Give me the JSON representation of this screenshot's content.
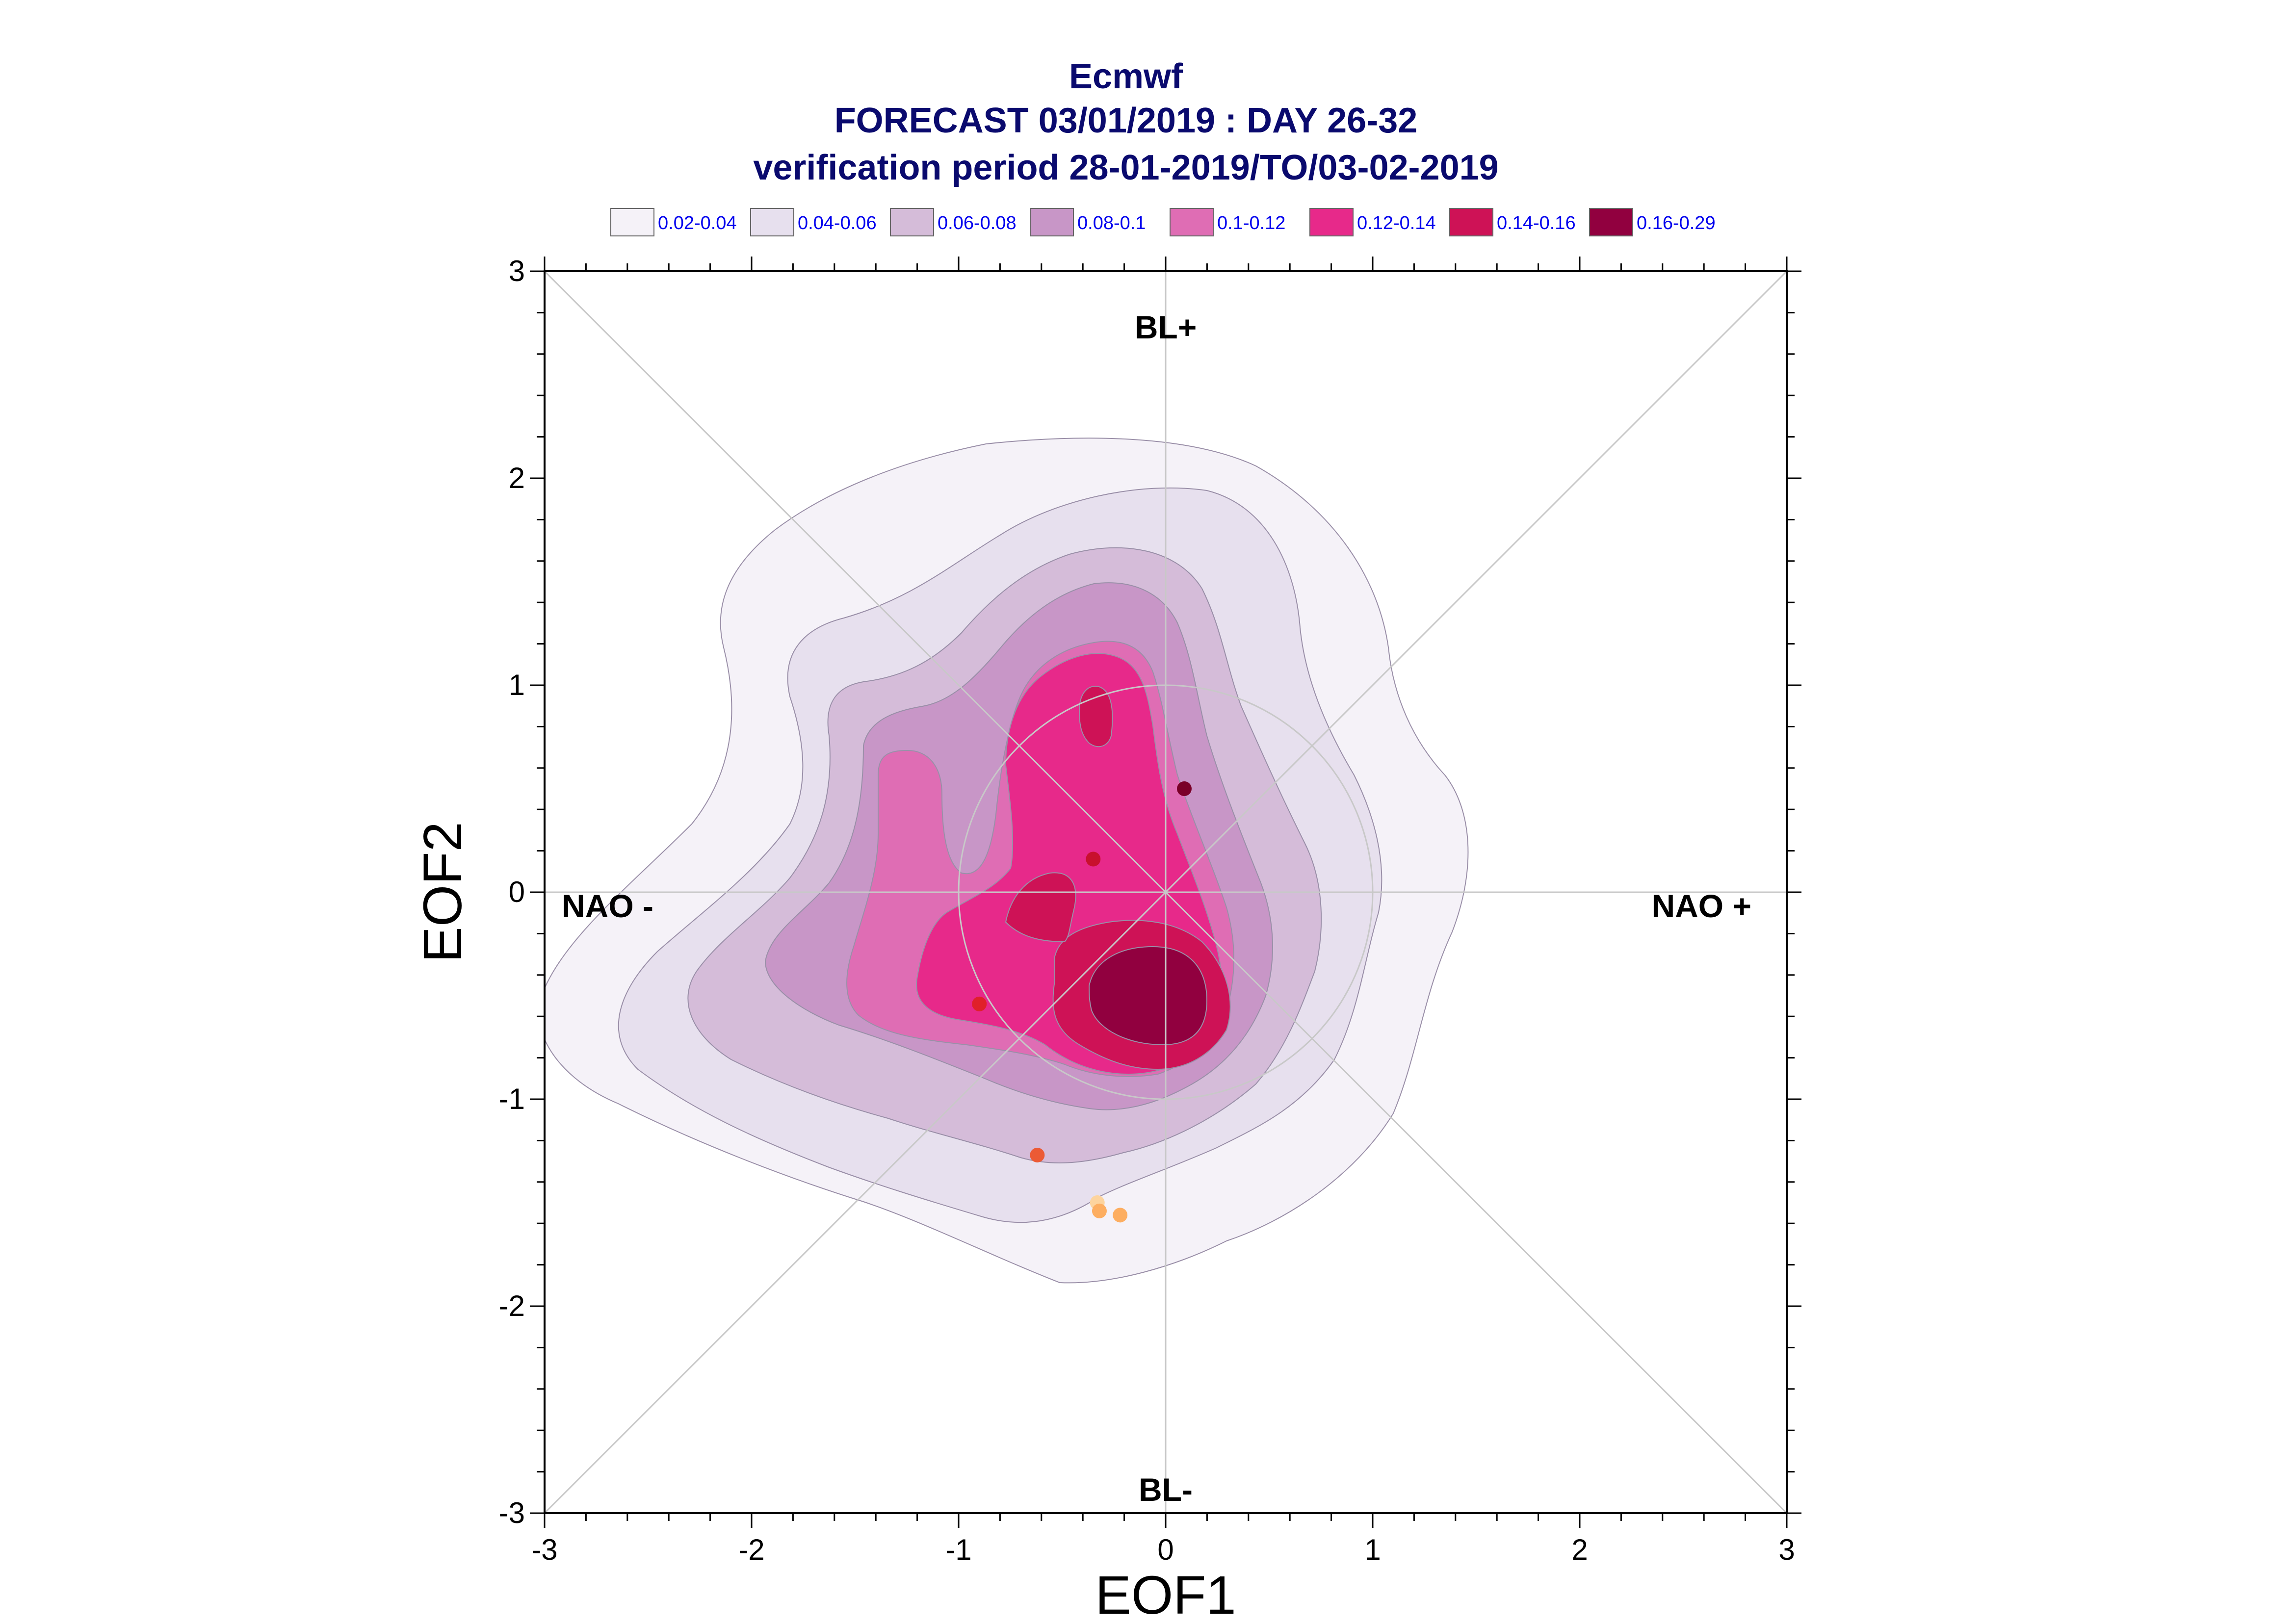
{
  "chart_data": {
    "type": "contour",
    "title_lines": [
      "Ecmwf",
      "FORECAST 03/01/2019 : DAY 26-32",
      "verification period 28-01-2019/TO/03-02-2019"
    ],
    "xlabel": "EOF1",
    "ylabel": "EOF2",
    "xlim": [
      -3,
      3
    ],
    "ylim": [
      -3,
      3
    ],
    "xticks": [
      "-3",
      "-2",
      "-1",
      "0",
      "1",
      "2",
      "3"
    ],
    "yticks": [
      "-3",
      "-2",
      "-1",
      "0",
      "1",
      "2",
      "3"
    ],
    "regime_labels": {
      "top": "BL+",
      "bottom": "BL-",
      "left": "NAO -",
      "right": "NAO +"
    },
    "legend": [
      {
        "label": "0.02-0.04",
        "color": "#f5f2f8"
      },
      {
        "label": "0.04-0.06",
        "color": "#e7e0ee"
      },
      {
        "label": "0.06-0.08",
        "color": "#d5bcd9"
      },
      {
        "label": "0.08-0.1",
        "color": "#c896c7"
      },
      {
        "label": "0.1-0.12",
        "color": "#df6db4"
      },
      {
        "label": "0.12-0.14",
        "color": "#e7298a"
      },
      {
        "label": "0.14-0.16",
        "color": "#ce1256"
      },
      {
        "label": "0.16-0.29",
        "color": "#91003f"
      }
    ],
    "points": [
      {
        "x": 0.09,
        "y": 0.5,
        "color": "#7a0028"
      },
      {
        "x": -0.35,
        "y": 0.16,
        "color": "#c8102e"
      },
      {
        "x": -0.9,
        "y": -0.54,
        "color": "#e0202a"
      },
      {
        "x": -0.62,
        "y": -1.27,
        "color": "#ec5a35"
      },
      {
        "x": -0.33,
        "y": -1.5,
        "color": "#fdd49e"
      },
      {
        "x": -0.32,
        "y": -1.54,
        "color": "#fdae61"
      },
      {
        "x": -0.22,
        "y": -1.56,
        "color": "#fdae61"
      }
    ],
    "reference_circle_radius": 1.0,
    "grid": false
  }
}
